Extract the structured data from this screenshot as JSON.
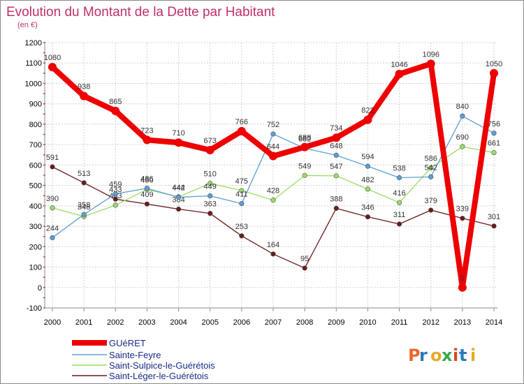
{
  "chart_data": {
    "type": "line",
    "title": "Evolution du Montant de la Dette par Habitant",
    "subtitle": "(en €)",
    "categories": [
      "2000",
      "2001",
      "2002",
      "2003",
      "2004",
      "2005",
      "2006",
      "2007",
      "2008",
      "2009",
      "2010",
      "2011",
      "2012",
      "2013",
      "2014"
    ],
    "ylim": [
      -100,
      1200
    ],
    "yticks": [
      -100,
      0,
      100,
      200,
      300,
      400,
      500,
      600,
      700,
      800,
      900,
      1000,
      1100,
      1200
    ],
    "grid": true,
    "legend_position": "bottom-left",
    "series": [
      {
        "name": "GUéRET",
        "color": "#ee0000",
        "values": [
          1080,
          938,
          865,
          723,
          710,
          673,
          766,
          644,
          688,
          734,
          822,
          1046,
          1096,
          0,
          1050
        ]
      },
      {
        "name": "Sainte-Feyre",
        "color": "#5a9fd4",
        "values": [
          244,
          358,
          459,
          486,
          442,
          449,
          411,
          752,
          682,
          648,
          594,
          538,
          542,
          840,
          756
        ]
      },
      {
        "name": "Saint-Sulpice-le-Guérétois",
        "color": "#99dd66",
        "values": [
          390,
          348,
          403,
          480,
          444,
          510,
          475,
          428,
          549,
          547,
          482,
          416,
          586,
          690,
          661
        ]
      },
      {
        "name": "Saint-Léger-le-Guérétois",
        "color": "#6b1a1a",
        "values": [
          591,
          513,
          433,
          409,
          384,
          363,
          253,
          164,
          95,
          388,
          346,
          311,
          379,
          339,
          301
        ]
      }
    ],
    "labels": [
      [
        "1080",
        "938",
        "865",
        "723",
        "710",
        "673",
        "766",
        "644",
        "688",
        "734",
        "822",
        "1046",
        "1096",
        "0",
        "1050"
      ],
      [
        "244",
        "358",
        "459",
        "486",
        "442",
        "449",
        "411",
        "752",
        "682",
        "648",
        "594",
        "538",
        "542",
        "840",
        "756"
      ],
      [
        "390",
        "348",
        "403",
        "480",
        "444",
        "510",
        "475",
        "428",
        "549",
        "547",
        "482",
        "416",
        "586",
        "690",
        "661"
      ],
      [
        "591",
        "513",
        "433",
        "409",
        "384",
        "363",
        "253",
        "164",
        "95",
        "388",
        "346",
        "311",
        "379",
        "339",
        "301"
      ]
    ]
  },
  "logo": {
    "text": "Proxiti"
  }
}
